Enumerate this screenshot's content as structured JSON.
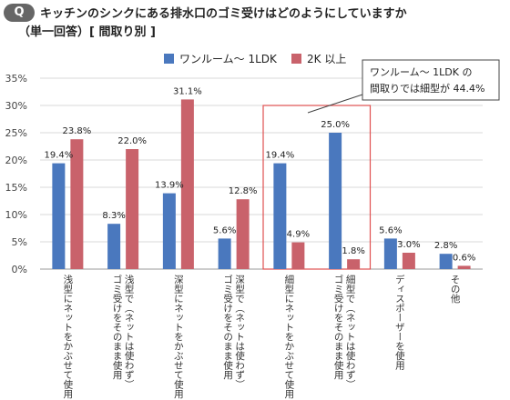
{
  "badge": "Q",
  "title_line1": "キッチンのシンクにある排水口のゴミ受けはどのようにしていますか",
  "title_line2": "（単一回答）[ 間取り別 ]",
  "chart_data": {
    "type": "bar",
    "categories": [
      "浅型にネットをかぶせて使用",
      "浅型で（ネットは使わず）ゴミ受けをそのまま使用",
      "深型にネットをかぶせて使用",
      "深型で（ネットは使わず）ゴミ受けをそのまま使用",
      "細型にネットをかぶせて使用",
      "細型で（ネットは使わず）ゴミ受けをそのまま使用",
      "ディスポーザーを使用",
      "その他"
    ],
    "category_lines": [
      [
        "浅型にネットをかぶせて使用"
      ],
      [
        "浅型で（ネットは使わず）",
        "ゴミ受けをそのまま使用"
      ],
      [
        "深型にネットをかぶせて使用"
      ],
      [
        "深型で（ネットは使わず）",
        "ゴミ受けをそのまま使用"
      ],
      [
        "細型にネットをかぶせて使用"
      ],
      [
        "細型で（ネットは使わず）",
        "ゴミ受けをそのまま使用"
      ],
      [
        "ディスポーザーを使用"
      ],
      [
        "その他"
      ]
    ],
    "series": [
      {
        "name": "ワンルーム～ 1LDK",
        "color": "#4a78be",
        "values": [
          19.4,
          8.3,
          13.9,
          5.6,
          19.4,
          25.0,
          5.6,
          2.8
        ],
        "labels": [
          "19.4%",
          "8.3%",
          "13.9%",
          "5.6%",
          "19.4%",
          "25.0%",
          "5.6%",
          "2.8%"
        ]
      },
      {
        "name": "2K 以上",
        "color": "#c9626b",
        "values": [
          23.8,
          22.0,
          31.1,
          12.8,
          4.9,
          1.8,
          3.0,
          0.6
        ],
        "labels": [
          "23.8%",
          "22.0%",
          "31.1%",
          "12.8%",
          "4.9%",
          "1.8%",
          "3.0%",
          "0.6%"
        ]
      }
    ],
    "y_ticks": [
      "0%",
      "5%",
      "10%",
      "15%",
      "20%",
      "25%",
      "30%",
      "35%"
    ],
    "ylim": [
      0,
      35
    ],
    "grid": true,
    "legend_position": "top-center",
    "highlight": {
      "categories": [
        4,
        5
      ],
      "color": "#e05050"
    },
    "annotation": {
      "line1": "ワンルーム～ 1LDK の",
      "line2": "間取りでは細型が 44.4%"
    }
  }
}
